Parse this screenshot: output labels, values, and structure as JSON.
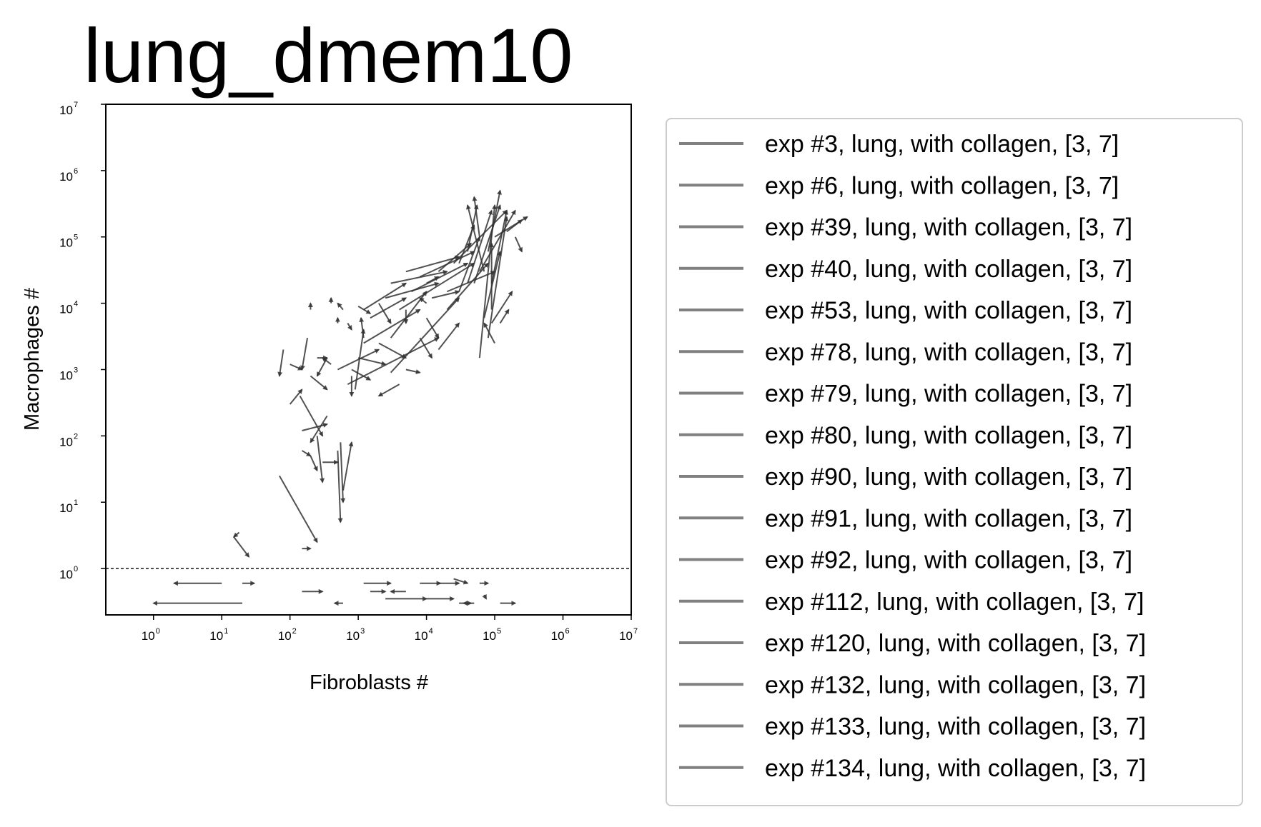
{
  "chart_data": {
    "type": "scatter",
    "subtype": "arrow-trajectories",
    "title": "lung_dmem10",
    "xlabel": "Fibroblasts #",
    "ylabel": "Macrophages #",
    "xscale": "log",
    "yscale": "log",
    "xlim": [
      0.2,
      10000000
    ],
    "ylim": [
      0.2,
      10000000
    ],
    "xticks": [
      {
        "base": "10",
        "exp": "0",
        "value": 1
      },
      {
        "base": "10",
        "exp": "1",
        "value": 10
      },
      {
        "base": "10",
        "exp": "2",
        "value": 100
      },
      {
        "base": "10",
        "exp": "3",
        "value": 1000
      },
      {
        "base": "10",
        "exp": "4",
        "value": 10000
      },
      {
        "base": "10",
        "exp": "5",
        "value": 100000
      },
      {
        "base": "10",
        "exp": "6",
        "value": 1000000
      },
      {
        "base": "10",
        "exp": "7",
        "value": 10000000
      }
    ],
    "yticks": [
      {
        "base": "10",
        "exp": "0",
        "value": 1
      },
      {
        "base": "10",
        "exp": "1",
        "value": 10
      },
      {
        "base": "10",
        "exp": "2",
        "value": 100
      },
      {
        "base": "10",
        "exp": "3",
        "value": 1000
      },
      {
        "base": "10",
        "exp": "4",
        "value": 10000
      },
      {
        "base": "10",
        "exp": "5",
        "value": 100000
      },
      {
        "base": "10",
        "exp": "6",
        "value": 1000000
      },
      {
        "base": "10",
        "exp": "7",
        "value": 10000000
      }
    ],
    "hline": 1,
    "arrow_color": "#333333",
    "legend_color": "#808080",
    "grid": false,
    "legend_position": "outside-right",
    "legend": [
      "exp #3, lung, with collagen, [3, 7]",
      "exp #6, lung, with collagen, [3, 7]",
      "exp #39, lung, with collagen, [3, 7]",
      "exp #40, lung, with collagen, [3, 7]",
      "exp #53, lung, with collagen, [3, 7]",
      "exp #78, lung, with collagen, [3, 7]",
      "exp #79, lung, with collagen, [3, 7]",
      "exp #80, lung, with collagen, [3, 7]",
      "exp #90, lung, with collagen, [3, 7]",
      "exp #91, lung, with collagen, [3, 7]",
      "exp #92, lung, with collagen, [3, 7]",
      "exp #112, lung, with collagen, [3, 7]",
      "exp #120, lung, with collagen, [3, 7]",
      "exp #132, lung, with collagen, [3, 7]",
      "exp #133, lung, with collagen, [3, 7]",
      "exp #134, lung, with collagen, [3, 7]"
    ],
    "arrows": [
      [
        [
          10,
          0.6
        ],
        [
          2,
          0.6
        ]
      ],
      [
        [
          20,
          0.3
        ],
        [
          1,
          0.3
        ]
      ],
      [
        [
          20,
          0.6
        ],
        [
          30,
          0.6
        ]
      ],
      [
        [
          150,
          0.45
        ],
        [
          300,
          0.45
        ]
      ],
      [
        [
          600,
          0.3
        ],
        [
          450,
          0.3
        ]
      ],
      [
        [
          1200,
          0.6
        ],
        [
          3000,
          0.6
        ]
      ],
      [
        [
          1500,
          0.45
        ],
        [
          2500,
          0.45
        ]
      ],
      [
        [
          2500,
          0.35
        ],
        [
          10000,
          0.35
        ]
      ],
      [
        [
          5000,
          0.45
        ],
        [
          3000,
          0.45
        ]
      ],
      [
        [
          8000,
          0.6
        ],
        [
          16000,
          0.6
        ]
      ],
      [
        [
          10000,
          0.35
        ],
        [
          25000,
          0.35
        ]
      ],
      [
        [
          15000,
          0.6
        ],
        [
          30000,
          0.6
        ]
      ],
      [
        [
          30000,
          0.3
        ],
        [
          45000,
          0.3
        ]
      ],
      [
        [
          50000,
          0.3
        ],
        [
          35000,
          0.3
        ]
      ],
      [
        [
          60000,
          0.6
        ],
        [
          80000,
          0.6
        ]
      ],
      [
        [
          120000,
          0.3
        ],
        [
          200000,
          0.3
        ]
      ],
      [
        [
          70000,
          0.4
        ],
        [
          75000,
          0.35
        ]
      ],
      [
        [
          25000,
          0.7
        ],
        [
          40000,
          0.6
        ]
      ],
      [
        [
          15,
          3
        ],
        [
          25,
          1.5
        ]
      ],
      [
        [
          18,
          3.5
        ],
        [
          15,
          3
        ]
      ],
      [
        [
          150,
          2
        ],
        [
          200,
          2
        ]
      ],
      [
        [
          70,
          25
        ],
        [
          250,
          2.5
        ]
      ],
      [
        [
          150,
          60
        ],
        [
          200,
          50
        ]
      ],
      [
        [
          200,
          50
        ],
        [
          250,
          30
        ]
      ],
      [
        [
          150,
          120
        ],
        [
          350,
          150
        ]
      ],
      [
        [
          140,
          400
        ],
        [
          300,
          100
        ]
      ],
      [
        [
          350,
          200
        ],
        [
          200,
          80
        ]
      ],
      [
        [
          250,
          100
        ],
        [
          300,
          20
        ]
      ],
      [
        [
          300,
          40
        ],
        [
          500,
          40
        ]
      ],
      [
        [
          500,
          60
        ],
        [
          550,
          5
        ]
      ],
      [
        [
          550,
          80
        ],
        [
          600,
          10
        ]
      ],
      [
        [
          600,
          15
        ],
        [
          800,
          80
        ]
      ],
      [
        [
          180,
          3000
        ],
        [
          150,
          1000
        ]
      ],
      [
        [
          100,
          1200
        ],
        [
          150,
          1000
        ]
      ],
      [
        [
          80,
          2000
        ],
        [
          70,
          800
        ]
      ],
      [
        [
          200,
          800
        ],
        [
          350,
          500
        ]
      ],
      [
        [
          400,
          1200
        ],
        [
          300,
          1500
        ]
      ],
      [
        [
          350,
          1500
        ],
        [
          250,
          800
        ]
      ],
      [
        [
          250,
          1500
        ],
        [
          350,
          1500
        ]
      ],
      [
        [
          600,
          8000
        ],
        [
          500,
          10000
        ]
      ],
      [
        [
          700,
          5000
        ],
        [
          800,
          4000
        ]
      ],
      [
        [
          500,
          1000
        ],
        [
          2000,
          2000
        ]
      ],
      [
        [
          900,
          500
        ],
        [
          1200,
          4000
        ]
      ],
      [
        [
          1000,
          1500
        ],
        [
          2500,
          1200
        ]
      ],
      [
        [
          800,
          1000
        ],
        [
          1500,
          700
        ]
      ],
      [
        [
          1200,
          3000
        ],
        [
          1100,
          6000
        ]
      ],
      [
        [
          1200,
          2500
        ],
        [
          8000,
          8000
        ]
      ],
      [
        [
          1500,
          6000
        ],
        [
          5000,
          12000
        ]
      ],
      [
        [
          1200,
          8000
        ],
        [
          5000,
          20000
        ]
      ],
      [
        [
          2000,
          10000
        ],
        [
          3000,
          5000
        ]
      ],
      [
        [
          2500,
          12000
        ],
        [
          15000,
          20000
        ]
      ],
      [
        [
          3000,
          3000
        ],
        [
          10000,
          15000
        ]
      ],
      [
        [
          2000,
          2500
        ],
        [
          5000,
          1500
        ]
      ],
      [
        [
          3000,
          900
        ],
        [
          30000,
          12000
        ]
      ],
      [
        [
          4000,
          600
        ],
        [
          2000,
          400
        ]
      ],
      [
        [
          800,
          800
        ],
        [
          800,
          400
        ]
      ],
      [
        [
          700,
          600
        ],
        [
          15000,
          3000
        ]
      ],
      [
        [
          5000,
          1000
        ],
        [
          8000,
          900
        ]
      ],
      [
        [
          8000,
          3000
        ],
        [
          12000,
          1500
        ]
      ],
      [
        [
          10000,
          6000
        ],
        [
          15000,
          3000
        ]
      ],
      [
        [
          15000,
          2000
        ],
        [
          30000,
          5000
        ]
      ],
      [
        [
          20000,
          8000
        ],
        [
          80000,
          40000
        ]
      ],
      [
        [
          30000,
          15000
        ],
        [
          60000,
          100000
        ]
      ],
      [
        [
          40000,
          20000
        ],
        [
          90000,
          250000
        ]
      ],
      [
        [
          50000,
          20000
        ],
        [
          120000,
          300000
        ]
      ],
      [
        [
          60000,
          30000
        ],
        [
          200000,
          250000
        ]
      ],
      [
        [
          60000,
          1500
        ],
        [
          100000,
          300000
        ]
      ],
      [
        [
          80000,
          3000
        ],
        [
          150000,
          200000
        ]
      ],
      [
        [
          100000,
          2500
        ],
        [
          70000,
          5000
        ]
      ],
      [
        [
          120000,
          5000
        ],
        [
          160000,
          8000
        ]
      ],
      [
        [
          90000,
          8000
        ],
        [
          90000,
          80000
        ]
      ],
      [
        [
          70000,
          30000
        ],
        [
          40000,
          300000
        ]
      ],
      [
        [
          100000,
          100000
        ],
        [
          300000,
          200000
        ]
      ],
      [
        [
          150000,
          120000
        ],
        [
          250000,
          180000
        ]
      ],
      [
        [
          200000,
          100000
        ],
        [
          250000,
          60000
        ]
      ],
      [
        [
          80000,
          60000
        ],
        [
          120000,
          500000
        ]
      ],
      [
        [
          60000,
          100000
        ],
        [
          50000,
          400000
        ]
      ],
      [
        [
          40000,
          60000
        ],
        [
          55000,
          300000
        ]
      ],
      [
        [
          30000,
          40000
        ],
        [
          50000,
          150000
        ]
      ],
      [
        [
          15000,
          30000
        ],
        [
          45000,
          80000
        ]
      ],
      [
        [
          8000,
          25000
        ],
        [
          50000,
          60000
        ]
      ],
      [
        [
          5000,
          30000
        ],
        [
          30000,
          50000
        ]
      ],
      [
        [
          3000,
          20000
        ],
        [
          20000,
          30000
        ]
      ],
      [
        [
          10000,
          20000
        ],
        [
          15000,
          25000
        ]
      ],
      [
        [
          6000,
          15000
        ],
        [
          40000,
          40000
        ]
      ],
      [
        [
          4000,
          8000
        ],
        [
          50000,
          40000
        ]
      ],
      [
        [
          20000,
          15000
        ],
        [
          100000,
          30000
        ]
      ],
      [
        [
          12000,
          12000
        ],
        [
          30000,
          15000
        ]
      ],
      [
        [
          25000,
          40000
        ],
        [
          150000,
          250000
        ]
      ],
      [
        [
          90000,
          20000
        ],
        [
          150000,
          250000
        ]
      ],
      [
        [
          70000,
          6000
        ],
        [
          120000,
          60000
        ]
      ],
      [
        [
          90000,
          5000
        ],
        [
          180000,
          15000
        ]
      ],
      [
        [
          200,
          8000
        ],
        [
          200,
          10000
        ]
      ],
      [
        [
          100,
          300
        ],
        [
          150,
          500
        ]
      ],
      [
        [
          500,
          5000
        ],
        [
          500,
          6000
        ]
      ],
      [
        [
          400,
          10000
        ],
        [
          400,
          12000
        ]
      ],
      [
        [
          1000,
          9000
        ],
        [
          1500,
          7000
        ]
      ],
      [
        [
          5000,
          8000
        ],
        [
          5000,
          5000
        ]
      ],
      [
        [
          10000,
          10000
        ],
        [
          8000,
          12000
        ]
      ]
    ]
  }
}
